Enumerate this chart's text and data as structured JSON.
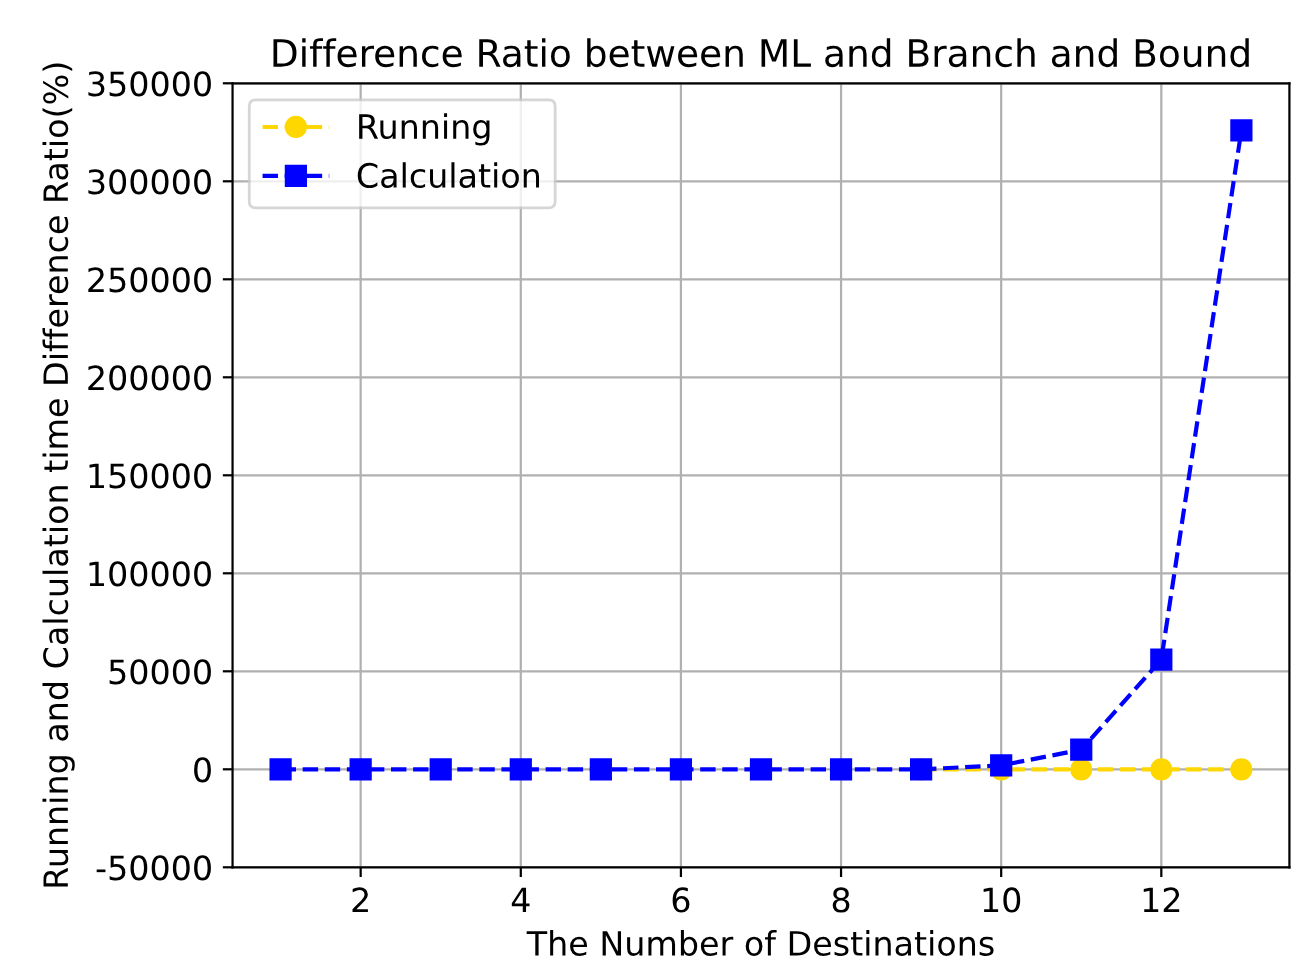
{
  "chart_data": {
    "type": "line",
    "title": "Difference Ratio between ML and Branch and Bound",
    "xlabel": "The Number of Destinations",
    "ylabel": "Running and Calculation time Difference Ratio(%)",
    "x": [
      1,
      2,
      3,
      4,
      5,
      6,
      7,
      8,
      9,
      10,
      11,
      12,
      13
    ],
    "series": [
      {
        "name": "Running",
        "color": "#ffd700",
        "marker": "circle",
        "values": [
          null,
          null,
          null,
          null,
          null,
          null,
          null,
          null,
          0,
          0,
          0,
          0,
          0
        ]
      },
      {
        "name": "Calculation",
        "color": "#0000ff",
        "marker": "square",
        "values": [
          0,
          0,
          0,
          0,
          0,
          0,
          0,
          0,
          0,
          2000,
          10000,
          56000,
          326000
        ]
      }
    ],
    "xlim": [
      0.4,
      13.6
    ],
    "xticks": [
      2,
      4,
      6,
      8,
      10,
      12
    ],
    "ylim": [
      -50000,
      350000
    ],
    "yticks": [
      -50000,
      0,
      50000,
      100000,
      150000,
      200000,
      250000,
      300000,
      350000
    ],
    "grid": true,
    "legend": "top left",
    "line_style": "dashed"
  }
}
